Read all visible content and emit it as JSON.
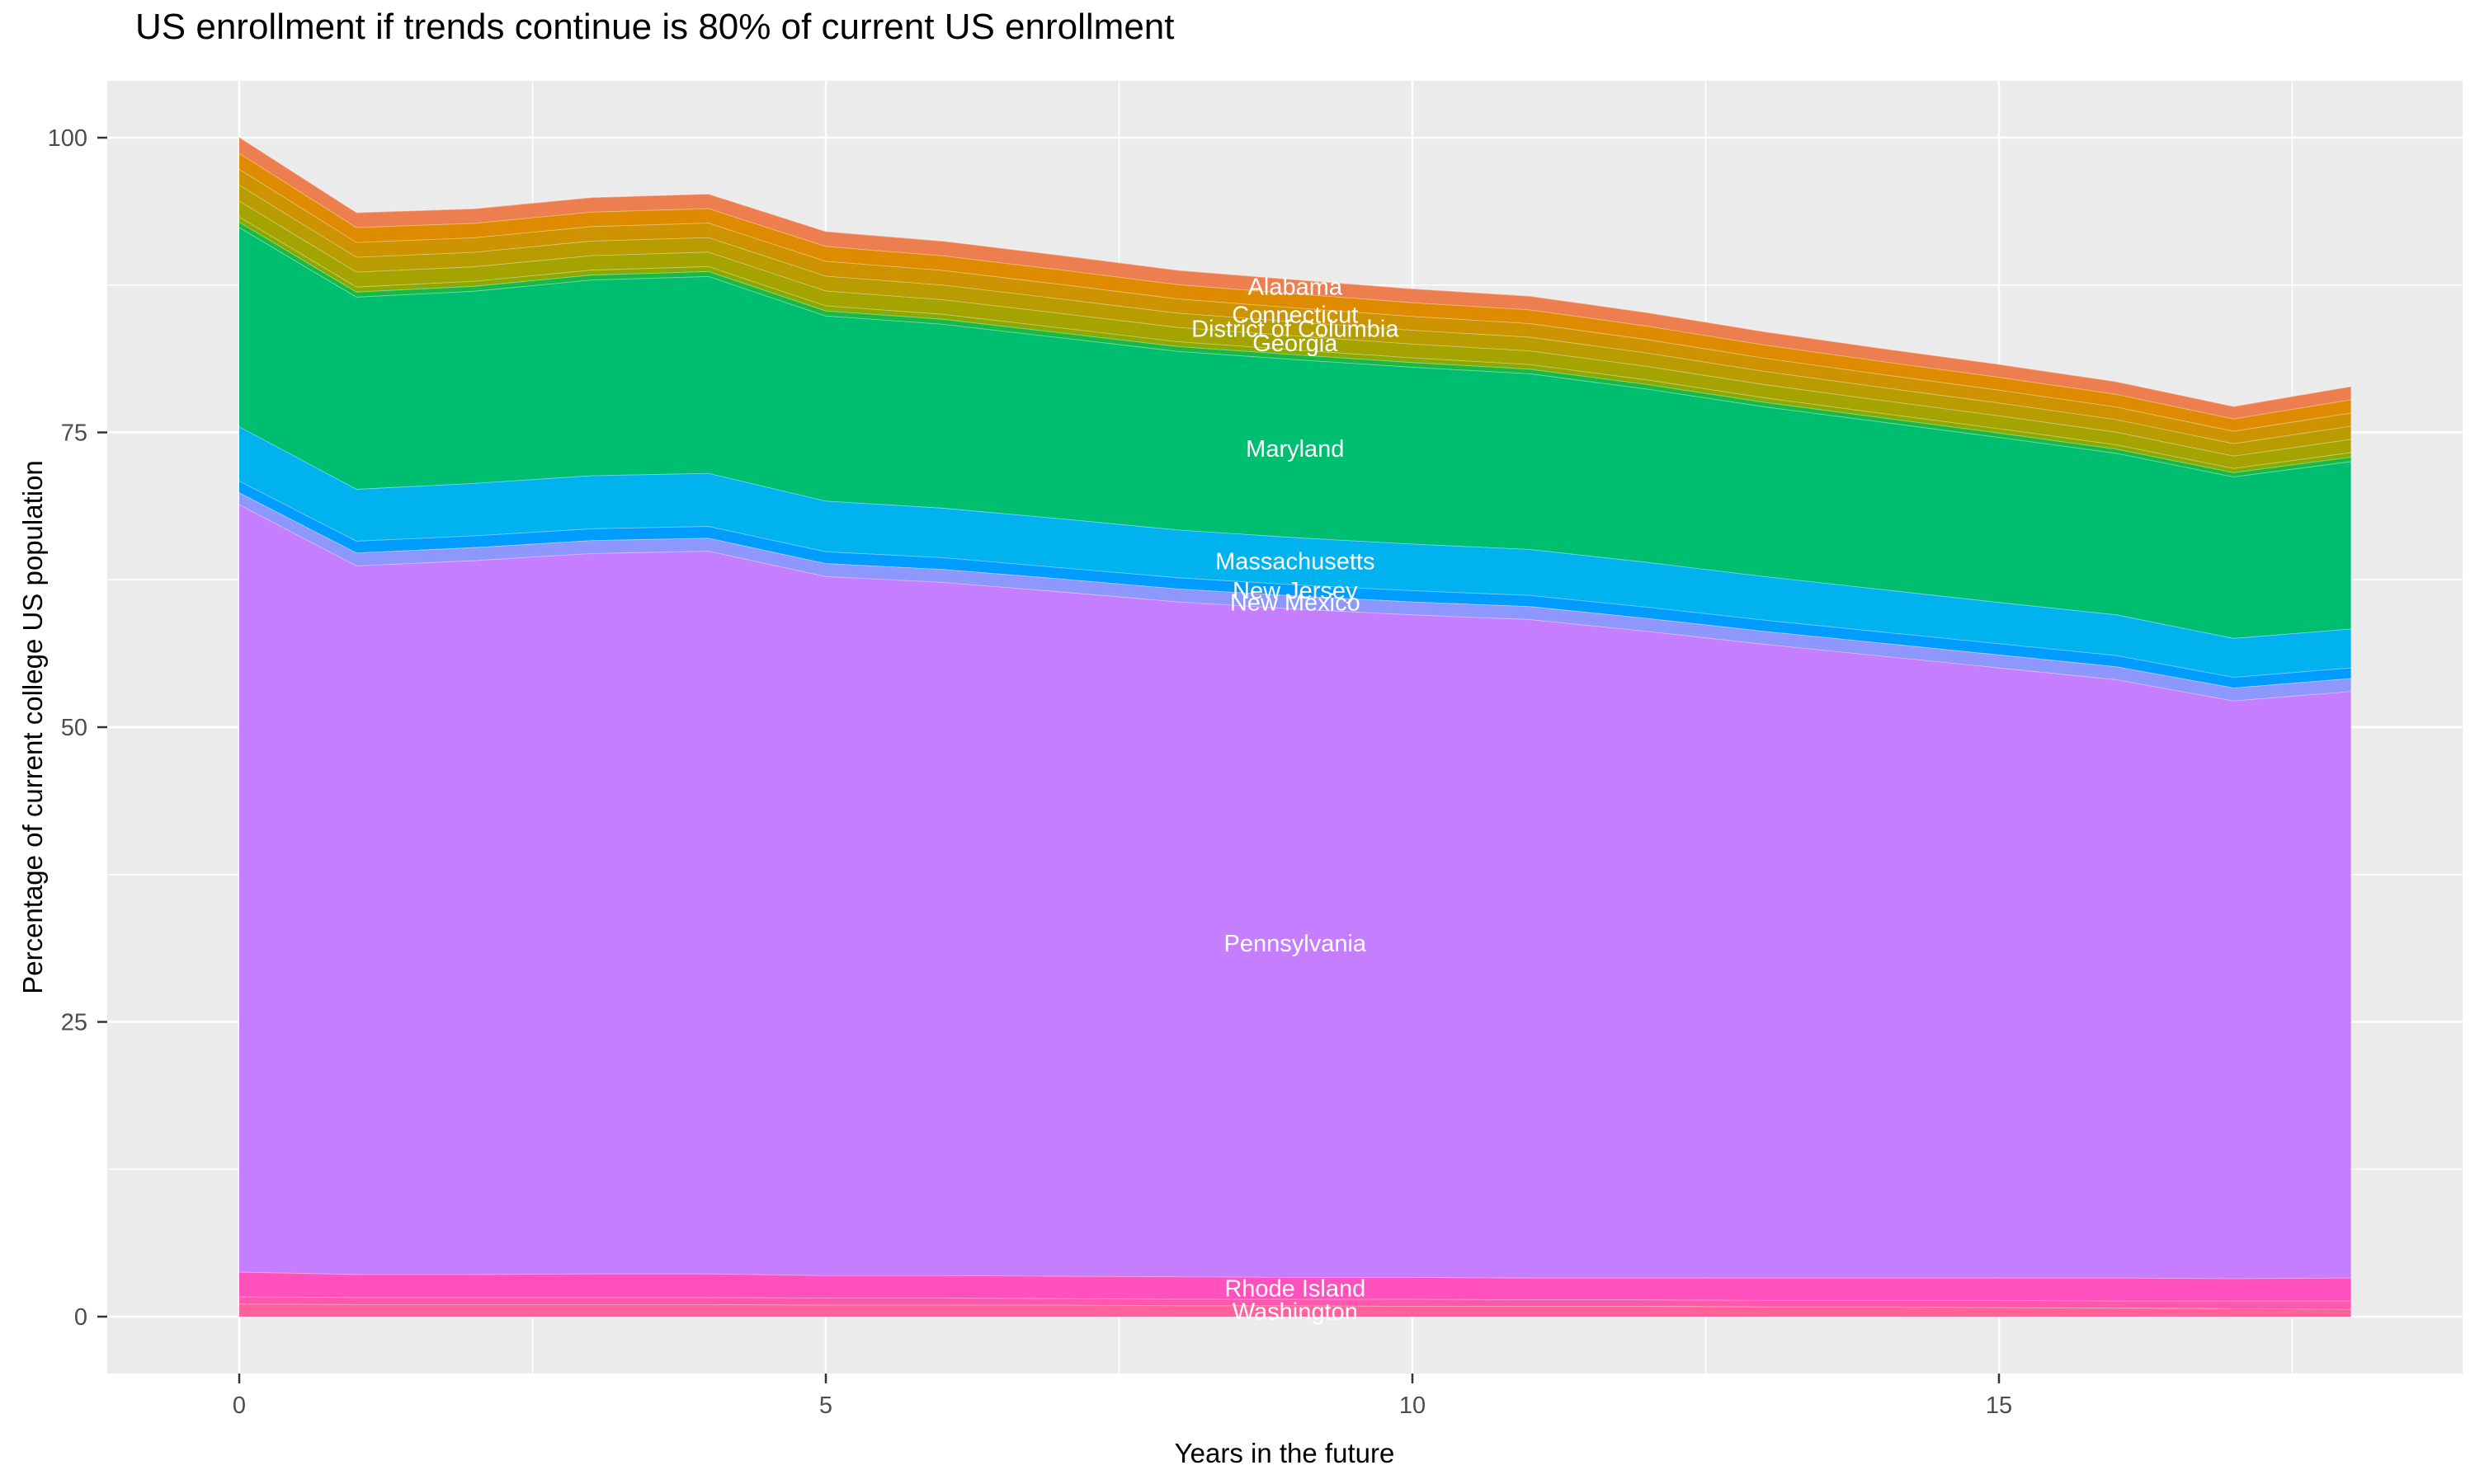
{
  "title": "US enrollment if trends continue is 80% of current US enrollment",
  "axes": {
    "x_label": "Years in the future",
    "y_label": "Percentage of current college US population",
    "x_ticks": [
      0,
      5,
      10,
      15
    ],
    "y_ticks": [
      0,
      25,
      50,
      75,
      100
    ]
  },
  "style": {
    "panel_bg": "#EBEBEB",
    "grid_color": "#FFFFFF",
    "tick_color": "#333333",
    "tick_label_color": "#4D4D4D",
    "area_label_color": "#FFFFFF"
  },
  "chart_data": {
    "type": "area",
    "stacked": true,
    "title": "US enrollment if trends continue is 80% of current US enrollment",
    "xlabel": "Years in the future",
    "ylabel": "Percentage of current college US population",
    "x": [
      0,
      1,
      2,
      3,
      4,
      5,
      6,
      7,
      8,
      9,
      10,
      11,
      12,
      13,
      14,
      15,
      16,
      17,
      18
    ],
    "xlim": [
      0,
      18
    ],
    "ylim": [
      0,
      100
    ],
    "grid": true,
    "legend": "none",
    "label_year": 9,
    "series_note": "bottom-to-top stacking order; label is the state name printed on the band ('' = band visible but unlabeled in image)",
    "series": [
      {
        "name": "washington",
        "label": "Washington",
        "color": "#FF6298",
        "values": [
          1.1,
          1.05,
          1.05,
          1.05,
          1.05,
          1.0,
          1.0,
          1.0,
          0.95,
          0.95,
          0.9,
          0.9,
          0.9,
          0.85,
          0.85,
          0.8,
          0.75,
          0.7,
          0.65
        ]
      },
      {
        "name": "unlabeled-band-4",
        "label": "",
        "color": "#FF57AC",
        "values": [
          0.6,
          0.6,
          0.6,
          0.6,
          0.6,
          0.6,
          0.6,
          0.55,
          0.55,
          0.55,
          0.6,
          0.55,
          0.55,
          0.55,
          0.55,
          0.6,
          0.6,
          0.65,
          0.7
        ]
      },
      {
        "name": "rhode-island",
        "label": "Rhode Island",
        "color": "#FF50BE",
        "values": [
          2.1,
          1.95,
          1.95,
          2.0,
          2.0,
          1.9,
          1.9,
          1.9,
          1.9,
          1.85,
          1.85,
          1.85,
          1.85,
          1.9,
          1.9,
          1.9,
          1.95,
          1.9,
          1.95
        ]
      },
      {
        "name": "pennsylvania",
        "label": "Pennsylvania",
        "color": "#C47EFF",
        "values": [
          65.1,
          60.1,
          60.55,
          61.1,
          61.3,
          59.3,
          58.8,
          58.05,
          57.25,
          56.7,
          56.2,
          55.85,
          54.85,
          53.75,
          52.75,
          51.75,
          50.75,
          49.0,
          49.75
        ]
      },
      {
        "name": "new-mexico",
        "label": "New Mexico",
        "color": "#8E97FB",
        "values": [
          1.0,
          1.1,
          1.1,
          1.1,
          1.1,
          1.1,
          1.1,
          1.1,
          1.1,
          1.1,
          1.1,
          1.1,
          1.1,
          1.1,
          1.1,
          1.1,
          1.1,
          1.1,
          1.1
        ]
      },
      {
        "name": "new-jersey",
        "label": "New Jersey",
        "color": "#009DFF",
        "values": [
          1.0,
          1.0,
          1.0,
          1.0,
          1.0,
          1.0,
          1.0,
          0.95,
          0.95,
          0.95,
          0.95,
          0.95,
          0.95,
          0.95,
          0.95,
          0.95,
          0.95,
          0.9,
          0.9
        ]
      },
      {
        "name": "massachusetts",
        "label": "Massachusetts",
        "color": "#00B3EE",
        "values": [
          4.6,
          4.4,
          4.45,
          4.5,
          4.5,
          4.3,
          4.2,
          4.15,
          4.05,
          4.0,
          3.95,
          3.9,
          3.8,
          3.7,
          3.6,
          3.5,
          3.45,
          3.3,
          3.3
        ]
      },
      {
        "name": "maryland",
        "label": "Maryland",
        "color": "#00BE70",
        "values": [
          16.9,
          16.3,
          16.3,
          16.6,
          16.7,
          15.7,
          15.6,
          15.35,
          15.15,
          15.1,
          15.0,
          14.9,
          14.7,
          14.4,
          14.2,
          14.0,
          13.7,
          13.7,
          14.2
        ]
      },
      {
        "name": "unlabeled-band-3",
        "label": "",
        "color": "#1BB844",
        "values": [
          0.45,
          0.43,
          0.42,
          0.42,
          0.42,
          0.43,
          0.42,
          0.42,
          0.41,
          0.41,
          0.4,
          0.39,
          0.39,
          0.38,
          0.37,
          0.37,
          0.36,
          0.36,
          0.38
        ]
      },
      {
        "name": "unlabeled-band-2",
        "label": "",
        "color": "#8CA900",
        "values": [
          0.45,
          0.43,
          0.42,
          0.42,
          0.42,
          0.43,
          0.42,
          0.42,
          0.41,
          0.41,
          0.4,
          0.39,
          0.39,
          0.38,
          0.37,
          0.37,
          0.36,
          0.36,
          0.38
        ]
      },
      {
        "name": "georgia",
        "label": "Georgia",
        "color": "#A4A300",
        "values": [
          1.35,
          1.26,
          1.23,
          1.23,
          1.23,
          1.26,
          1.24,
          1.23,
          1.21,
          1.19,
          1.17,
          1.16,
          1.14,
          1.12,
          1.1,
          1.09,
          1.07,
          1.05,
          1.12
        ]
      },
      {
        "name": "district-of-columbia",
        "label": "District of Columbia",
        "color": "#B89C00",
        "values": [
          1.35,
          1.26,
          1.23,
          1.23,
          1.23,
          1.26,
          1.24,
          1.23,
          1.21,
          1.19,
          1.17,
          1.16,
          1.14,
          1.12,
          1.1,
          1.09,
          1.07,
          1.05,
          1.12
        ]
      },
      {
        "name": "connecticut",
        "label": "Connecticut",
        "color": "#CD9300",
        "values": [
          1.35,
          1.26,
          1.23,
          1.23,
          1.23,
          1.26,
          1.24,
          1.23,
          1.21,
          1.19,
          1.17,
          1.16,
          1.14,
          1.12,
          1.1,
          1.09,
          1.07,
          1.05,
          1.12
        ]
      },
      {
        "name": "unlabeled-band-1",
        "label": "",
        "color": "#DE8B00",
        "values": [
          1.35,
          1.26,
          1.23,
          1.23,
          1.23,
          1.26,
          1.24,
          1.23,
          1.21,
          1.19,
          1.17,
          1.16,
          1.14,
          1.12,
          1.1,
          1.09,
          1.07,
          1.05,
          1.12
        ]
      },
      {
        "name": "alabama",
        "label": "Alabama",
        "color": "#ED7E4F",
        "values": [
          1.35,
          1.26,
          1.23,
          1.23,
          1.23,
          1.26,
          1.24,
          1.23,
          1.21,
          1.19,
          1.17,
          1.16,
          1.14,
          1.12,
          1.1,
          1.09,
          1.07,
          1.05,
          1.12
        ]
      }
    ]
  }
}
